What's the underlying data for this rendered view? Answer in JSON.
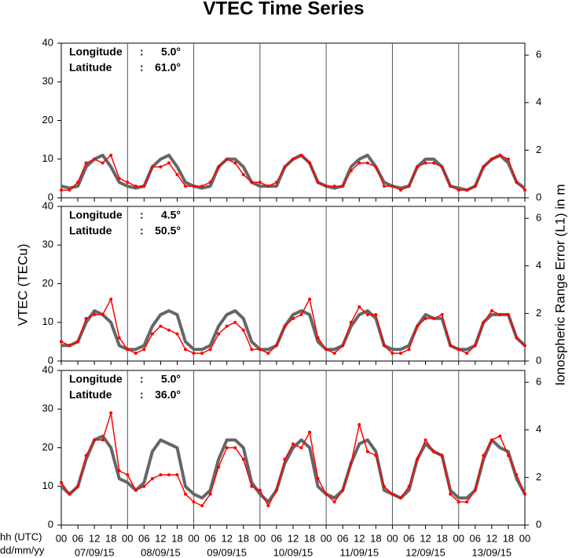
{
  "title": "VTEC Time Series",
  "ylabel": "VTEC (TECu)",
  "y2label": "Ionospheric Range Error (L1) in m",
  "xlabel_lines": [
    "hh (UTC)",
    "dd/mm/yy"
  ],
  "chart_data": [
    {
      "type": "line",
      "annotations": [
        [
          "Longitude",
          ":",
          "5.0°"
        ],
        [
          "Latitude",
          ":",
          "61.0°"
        ]
      ],
      "x": [
        0,
        3,
        6,
        9,
        12,
        15,
        18,
        21,
        24,
        27,
        30,
        33,
        36,
        39,
        42,
        45,
        48,
        51,
        54,
        57,
        60,
        63,
        66,
        69,
        72,
        75,
        78,
        81,
        84,
        87,
        90,
        93,
        96,
        99,
        102,
        105,
        108,
        111,
        114,
        117,
        120,
        123,
        126,
        129,
        132,
        135,
        138,
        141,
        144,
        147,
        150,
        153,
        156,
        159,
        162,
        165,
        168
      ],
      "xlim": [
        0,
        168
      ],
      "ylim": [
        0,
        40
      ],
      "yticks": [
        0,
        10,
        20,
        30,
        40
      ],
      "y2lim": [
        0,
        6.5
      ],
      "y2ticks": [
        0,
        2,
        4,
        6
      ],
      "series": [
        {
          "color": "#666666",
          "values": [
            3,
            2.5,
            3,
            8,
            10,
            11,
            8,
            4,
            3,
            2.5,
            3,
            8,
            10,
            11,
            8,
            4,
            3,
            2.5,
            3,
            8,
            10,
            10,
            8,
            4,
            3,
            3,
            3,
            8,
            10,
            11,
            9,
            4,
            3,
            2.5,
            3,
            8,
            10,
            11,
            8,
            4,
            3,
            2.5,
            3,
            8,
            10,
            10,
            8,
            3,
            2.5,
            2,
            3,
            8,
            10,
            11,
            9,
            4,
            2.5
          ]
        },
        {
          "color": "#ff0000",
          "values": [
            2,
            2,
            4,
            9,
            10,
            9,
            11,
            5,
            4,
            3,
            3,
            8,
            8,
            9,
            6,
            3,
            3,
            3,
            4,
            8,
            10,
            9,
            6,
            4,
            4,
            3,
            4,
            8,
            10,
            11,
            9,
            4,
            3,
            3,
            3,
            7,
            9,
            9,
            8,
            3,
            3,
            2,
            3,
            8,
            9,
            9,
            8,
            3,
            2,
            2,
            3,
            8,
            10,
            11,
            10,
            4,
            2
          ]
        }
      ]
    },
    {
      "type": "line",
      "annotations": [
        [
          "Longitude",
          ":",
          "4.5°"
        ],
        [
          "Latitude",
          ":",
          "50.5°"
        ]
      ],
      "x": [
        0,
        3,
        6,
        9,
        12,
        15,
        18,
        21,
        24,
        27,
        30,
        33,
        36,
        39,
        42,
        45,
        48,
        51,
        54,
        57,
        60,
        63,
        66,
        69,
        72,
        75,
        78,
        81,
        84,
        87,
        90,
        93,
        96,
        99,
        102,
        105,
        108,
        111,
        114,
        117,
        120,
        123,
        126,
        129,
        132,
        135,
        138,
        141,
        144,
        147,
        150,
        153,
        156,
        159,
        162,
        165,
        168
      ],
      "xlim": [
        0,
        168
      ],
      "ylim": [
        0,
        40
      ],
      "yticks": [
        0,
        10,
        20,
        30,
        40
      ],
      "y2lim": [
        0,
        6.5
      ],
      "y2ticks": [
        0,
        2,
        4,
        6
      ],
      "series": [
        {
          "color": "#666666",
          "values": [
            4,
            4,
            5,
            10,
            13,
            12,
            10,
            4,
            3,
            3,
            4,
            9,
            12,
            13,
            12,
            5,
            3,
            3,
            4,
            9,
            12,
            13,
            11,
            5,
            3,
            3,
            4,
            9,
            12,
            13,
            12,
            5,
            3,
            3,
            4,
            9,
            12,
            13,
            11,
            4,
            3,
            3,
            4,
            9,
            12,
            11,
            11,
            4,
            3,
            3,
            4,
            10,
            12,
            12,
            12,
            6,
            4
          ]
        },
        {
          "color": "#ff0000",
          "values": [
            5,
            4,
            5,
            11,
            12,
            12,
            16,
            6,
            3,
            2,
            3,
            7,
            9,
            8,
            7,
            3,
            2,
            2,
            3,
            7,
            9,
            10,
            8,
            3,
            3,
            2,
            4,
            9,
            11,
            12,
            16,
            6,
            3,
            2,
            4,
            10,
            14,
            12,
            12,
            4,
            2,
            2,
            3,
            9,
            11,
            11,
            12,
            4,
            3,
            2,
            4,
            10,
            13,
            12,
            12,
            6,
            4
          ]
        }
      ]
    },
    {
      "type": "line",
      "annotations": [
        [
          "Longitude",
          ":",
          "5.0°"
        ],
        [
          "Latitude",
          ":",
          "36.0°"
        ]
      ],
      "x": [
        0,
        3,
        6,
        9,
        12,
        15,
        18,
        21,
        24,
        27,
        30,
        33,
        36,
        39,
        42,
        45,
        48,
        51,
        54,
        57,
        60,
        63,
        66,
        69,
        72,
        75,
        78,
        81,
        84,
        87,
        90,
        93,
        96,
        99,
        102,
        105,
        108,
        111,
        114,
        117,
        120,
        123,
        126,
        129,
        132,
        135,
        138,
        141,
        144,
        147,
        150,
        153,
        156,
        159,
        162,
        165,
        168
      ],
      "xlim": [
        0,
        168
      ],
      "ylim": [
        0,
        40
      ],
      "yticks": [
        0,
        10,
        20,
        30,
        40
      ],
      "y2lim": [
        0,
        6.5
      ],
      "y2ticks": [
        0,
        2,
        4,
        6
      ],
      "xticks": [
        {
          "value": 0,
          "label": "00"
        },
        {
          "value": 6,
          "label": "06"
        },
        {
          "value": 12,
          "label": "12"
        },
        {
          "value": 18,
          "label": "18"
        },
        {
          "value": 24,
          "label": "00"
        },
        {
          "value": 30,
          "label": "06"
        },
        {
          "value": 36,
          "label": "12"
        },
        {
          "value": 42,
          "label": "18"
        },
        {
          "value": 48,
          "label": "00"
        },
        {
          "value": 54,
          "label": "06"
        },
        {
          "value": 60,
          "label": "12"
        },
        {
          "value": 66,
          "label": "18"
        },
        {
          "value": 72,
          "label": "00"
        },
        {
          "value": 78,
          "label": "06"
        },
        {
          "value": 84,
          "label": "12"
        },
        {
          "value": 90,
          "label": "18"
        },
        {
          "value": 96,
          "label": "00"
        },
        {
          "value": 102,
          "label": "06"
        },
        {
          "value": 108,
          "label": "12"
        },
        {
          "value": 114,
          "label": "18"
        },
        {
          "value": 120,
          "label": "00"
        },
        {
          "value": 126,
          "label": "06"
        },
        {
          "value": 132,
          "label": "12"
        },
        {
          "value": 138,
          "label": "18"
        },
        {
          "value": 144,
          "label": "00"
        },
        {
          "value": 150,
          "label": "06"
        },
        {
          "value": 156,
          "label": "12"
        },
        {
          "value": 162,
          "label": "18"
        },
        {
          "value": 168,
          "label": "00"
        }
      ],
      "dates": [
        "07/09/15",
        "08/09/15",
        "09/09/15",
        "10/09/15",
        "11/09/15",
        "12/09/15",
        "13/09/15"
      ],
      "series": [
        {
          "color": "#666666",
          "values": [
            10,
            8,
            10,
            17,
            22,
            23,
            20,
            12,
            11,
            9,
            11,
            19,
            22,
            21,
            20,
            10,
            8,
            7,
            9,
            17,
            22,
            22,
            20,
            11,
            8,
            6,
            9,
            16,
            20,
            22,
            20,
            10,
            8,
            7,
            9,
            16,
            21,
            22,
            19,
            9,
            8,
            7,
            9,
            17,
            21,
            19,
            18,
            9,
            7,
            7,
            9,
            17,
            22,
            20,
            19,
            12,
            8
          ]
        },
        {
          "color": "#ff0000",
          "values": [
            11,
            8,
            10,
            18,
            22,
            22,
            29,
            14,
            13,
            9,
            10,
            12,
            13,
            13,
            13,
            8,
            6,
            5,
            8,
            15,
            20,
            20,
            17,
            10,
            9,
            5,
            9,
            17,
            21,
            20,
            24,
            12,
            8,
            6,
            9,
            16,
            26,
            19,
            18,
            10,
            8,
            7,
            10,
            17,
            22,
            19,
            18,
            8,
            6,
            6,
            9,
            18,
            22,
            23,
            18,
            13,
            8
          ]
        }
      ]
    }
  ]
}
